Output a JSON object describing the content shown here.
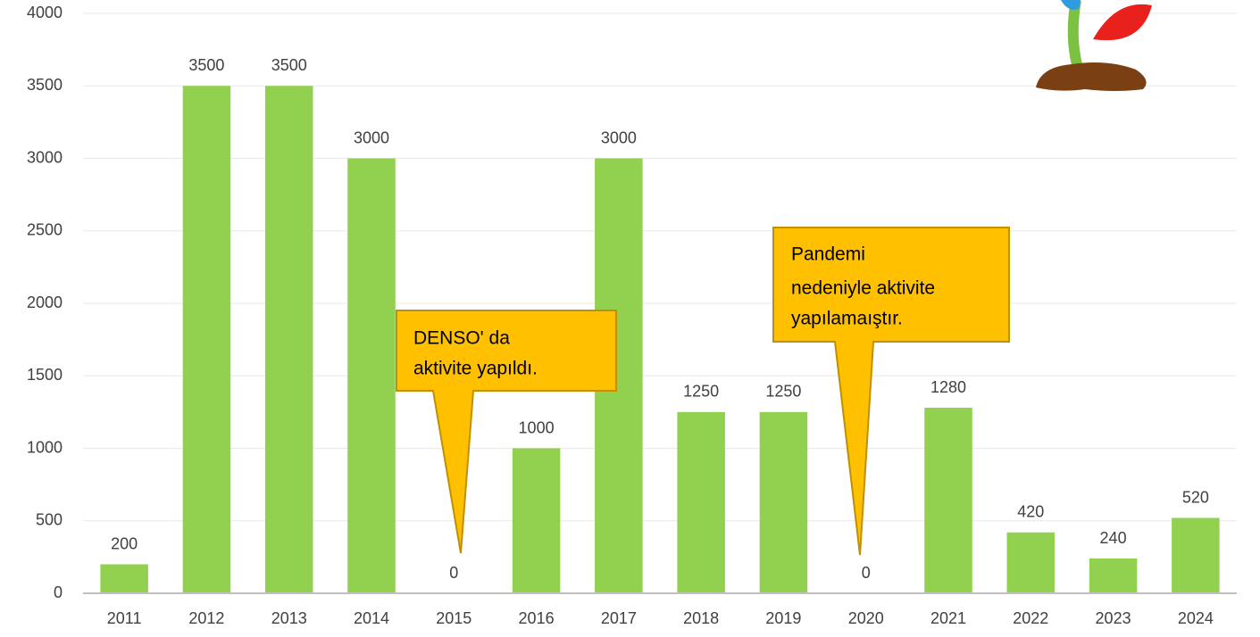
{
  "chart_data": {
    "type": "bar",
    "categories": [
      "2011",
      "2012",
      "2013",
      "2014",
      "2015",
      "2016",
      "2017",
      "2018",
      "2019",
      "2020",
      "2021",
      "2022",
      "2023",
      "2024"
    ],
    "values": [
      200,
      3500,
      3500,
      3000,
      0,
      1000,
      3000,
      1250,
      1250,
      0,
      1280,
      420,
      240,
      520
    ],
    "color": "#92d050",
    "ylim": [
      0,
      4000
    ],
    "yticks": [
      0,
      500,
      1000,
      1500,
      2000,
      2500,
      3000,
      3500,
      4000
    ],
    "grid": true,
    "annotations": [
      {
        "lines": [
          "DENSO' da",
          "aktivite yapıldı."
        ]
      },
      {
        "lines": [
          "Pandemi",
          "nedeniyle aktivite",
          "yapılamaıştır."
        ]
      }
    ]
  }
}
